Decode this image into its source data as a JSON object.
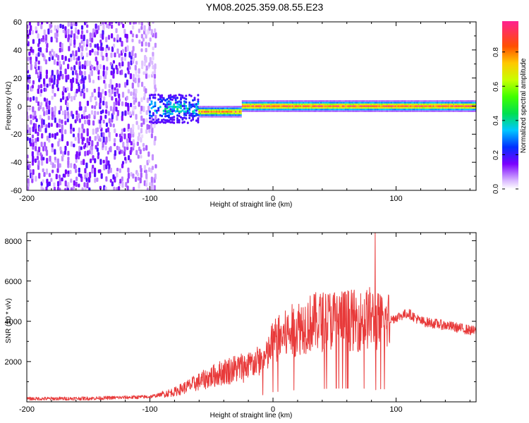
{
  "title": "YM08.2025.359.08.55.E23",
  "chart_data": [
    {
      "type": "heatmap",
      "name": "spectrogram",
      "xlabel": "Height of straight line (km)",
      "ylabel": "Frequency (Hz)",
      "xlim": [
        -200,
        165
      ],
      "ylim": [
        -60,
        60
      ],
      "xticks": [
        "-200",
        "-100",
        "0",
        "100"
      ],
      "yticks": [
        "-60",
        "-40",
        "-20",
        "0",
        "20",
        "40",
        "60"
      ],
      "colorbar": {
        "label": "Normalized spectral amplitude",
        "ticks": [
          "0.0",
          "0.2",
          "0.4",
          "0.6",
          "0.8"
        ],
        "range": [
          0,
          0.98
        ]
      },
      "regions": [
        {
          "x": [
            -200,
            -100
          ],
          "description": "broadband noise, amplitude 0.05–0.2"
        },
        {
          "x": [
            -100,
            -60
          ],
          "freq_center": 0,
          "freq_halfwidth": 10,
          "amplitude": 0.3
        },
        {
          "x": [
            -60,
            -25
          ],
          "freq_center": -4,
          "amplitude_peak": 0.85
        },
        {
          "x": [
            -25,
            165
          ],
          "freq_center": 0,
          "amplitude_peak": 0.9
        }
      ]
    },
    {
      "type": "line",
      "name": "snr",
      "xlabel": "Height of straight line (km)",
      "ylabel": "SNR (10 * v/v)",
      "xlim": [
        -200,
        165
      ],
      "ylim": [
        0,
        8400
      ],
      "xticks": [
        "-200",
        "-100",
        "0",
        "100"
      ],
      "yticks": [
        "2000",
        "4000",
        "6000",
        "8000"
      ],
      "color": "#e83a3a",
      "series": [
        {
          "name": "SNR",
          "x": [
            -200,
            -150,
            -100,
            -80,
            -60,
            -40,
            -20,
            -5,
            0,
            10,
            20,
            30,
            40,
            50,
            60,
            70,
            80,
            83,
            90,
            100,
            110,
            120,
            140,
            165
          ],
          "y": [
            150,
            170,
            250,
            500,
            1000,
            1500,
            1800,
            2200,
            3000,
            3300,
            3700,
            3900,
            4000,
            4100,
            4100,
            4000,
            4200,
            4000,
            3900,
            4200,
            4400,
            4000,
            3800,
            3500
          ]
        }
      ],
      "spikes": [
        {
          "x": 38,
          "y": 5200
        },
        {
          "x": 83,
          "y": 8400
        },
        {
          "x": 83.5,
          "y": 600
        }
      ]
    }
  ]
}
